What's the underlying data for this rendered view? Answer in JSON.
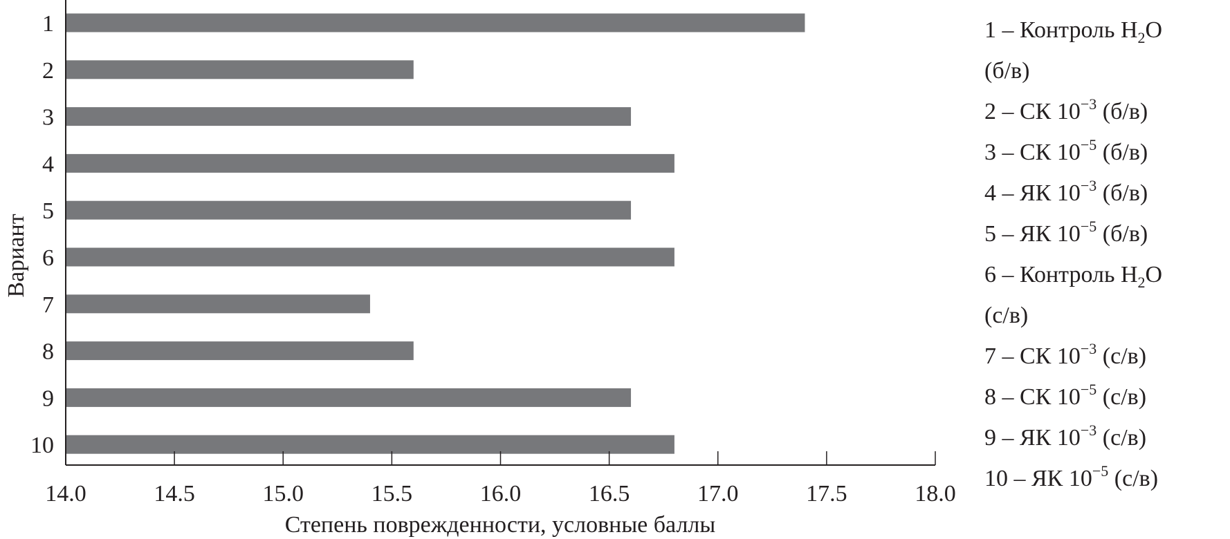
{
  "chart_data": {
    "type": "bar",
    "orientation": "horizontal",
    "categories": [
      "1",
      "2",
      "3",
      "4",
      "5",
      "6",
      "7",
      "8",
      "9",
      "10"
    ],
    "values": [
      17.4,
      15.6,
      16.6,
      16.8,
      16.6,
      16.8,
      15.4,
      15.6,
      16.6,
      16.8
    ],
    "xlabel": "Степень поврежденности, условные баллы",
    "ylabel": "Вариант",
    "xlim": [
      14.0,
      18.0
    ],
    "xticks": [
      "14.0",
      "14.5",
      "15.0",
      "15.5",
      "16.0",
      "16.5",
      "17.0",
      "17.5",
      "18.0"
    ],
    "grid": false,
    "bar_color": "#77787b",
    "legend_position": "right",
    "legend": [
      {
        "prefix": "1 –  Контроль H",
        "sub": "2",
        "suffix": "O"
      },
      {
        "prefix": "(б/в)"
      },
      {
        "prefix": "2 – СК 10",
        "sup": "−3",
        "suffix": " (б/в)"
      },
      {
        "prefix": "3 – СК 10",
        "sup": "−5",
        "suffix": " (б/в)"
      },
      {
        "prefix": "4 – ЯК 10",
        "sup": "−3",
        "suffix": " (б/в)"
      },
      {
        "prefix": "5 – ЯК 10",
        "sup": "−5",
        "suffix": " (б/в)"
      },
      {
        "prefix": "6 –  Контроль H",
        "sub": "2",
        "suffix": "O"
      },
      {
        "prefix": "(с/в)"
      },
      {
        "prefix": "7 – СК 10",
        "sup": "−3",
        "suffix": " (с/в)"
      },
      {
        "prefix": "8 – СК 10",
        "sup": "−5",
        "suffix": " (с/в)"
      },
      {
        "prefix": "9 – ЯК 10",
        "sup": "−3",
        "suffix": " (с/в)"
      },
      {
        "prefix": "10 – ЯК 10",
        "sup": "−5",
        "suffix": " (с/в)"
      }
    ]
  }
}
